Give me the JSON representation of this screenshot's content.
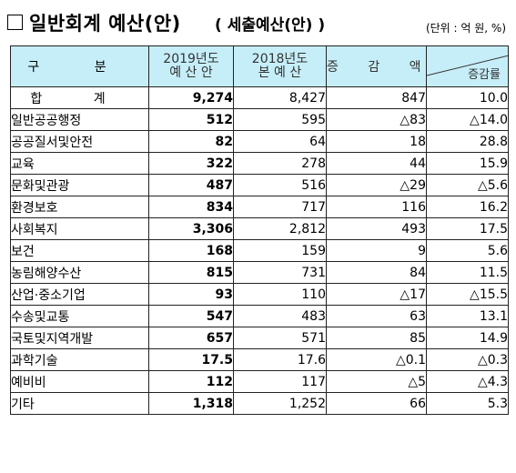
{
  "title": {
    "main": "일반회계 예산(안)",
    "sub": "( 세출예산(안) )",
    "unit": "(단위 : 억 원, %)"
  },
  "table": {
    "headers": {
      "category": "구 분",
      "y2019_line1": "2019년도",
      "y2019_line2": "예 산 안",
      "y2018_line1": "2018년도",
      "y2018_line2": "본 예 산",
      "diff": "증 감 액",
      "rate": "증감률"
    },
    "rows": [
      {
        "category": "합 계",
        "y2019": "9,274",
        "y2018": "8,427",
        "diff": "847",
        "rate": "10.0"
      },
      {
        "category": "일반공공행정",
        "y2019": "512",
        "y2018": "595",
        "diff": "△83",
        "rate": "△14.0"
      },
      {
        "category": "공공질서및안전",
        "y2019": "82",
        "y2018": "64",
        "diff": "18",
        "rate": "28.8"
      },
      {
        "category": "교육",
        "y2019": "322",
        "y2018": "278",
        "diff": "44",
        "rate": "15.9"
      },
      {
        "category": "문화및관광",
        "y2019": "487",
        "y2018": "516",
        "diff": "△29",
        "rate": "△5.6"
      },
      {
        "category": "환경보호",
        "y2019": "834",
        "y2018": "717",
        "diff": "116",
        "rate": "16.2"
      },
      {
        "category": "사회복지",
        "y2019": "3,306",
        "y2018": "2,812",
        "diff": "493",
        "rate": "17.5"
      },
      {
        "category": "보건",
        "y2019": "168",
        "y2018": "159",
        "diff": "9",
        "rate": "5.6"
      },
      {
        "category": "농림해양수산",
        "y2019": "815",
        "y2018": "731",
        "diff": "84",
        "rate": "11.5"
      },
      {
        "category": "산업·중소기업",
        "y2019": "93",
        "y2018": "110",
        "diff": "△17",
        "rate": "△15.5"
      },
      {
        "category": "수송및교통",
        "y2019": "547",
        "y2018": "483",
        "diff": "63",
        "rate": "13.1"
      },
      {
        "category": "국토및지역개발",
        "y2019": "657",
        "y2018": "571",
        "diff": "85",
        "rate": "14.9"
      },
      {
        "category": "과학기술",
        "y2019": "17.5",
        "y2018": "17.6",
        "diff": "△0.1",
        "rate": "△0.3"
      },
      {
        "category": "예비비",
        "y2019": "112",
        "y2018": "117",
        "diff": "△5",
        "rate": "△4.3"
      },
      {
        "category": "기타",
        "y2019": "1,318",
        "y2018": "1,252",
        "diff": "66",
        "rate": "5.3"
      }
    ]
  }
}
